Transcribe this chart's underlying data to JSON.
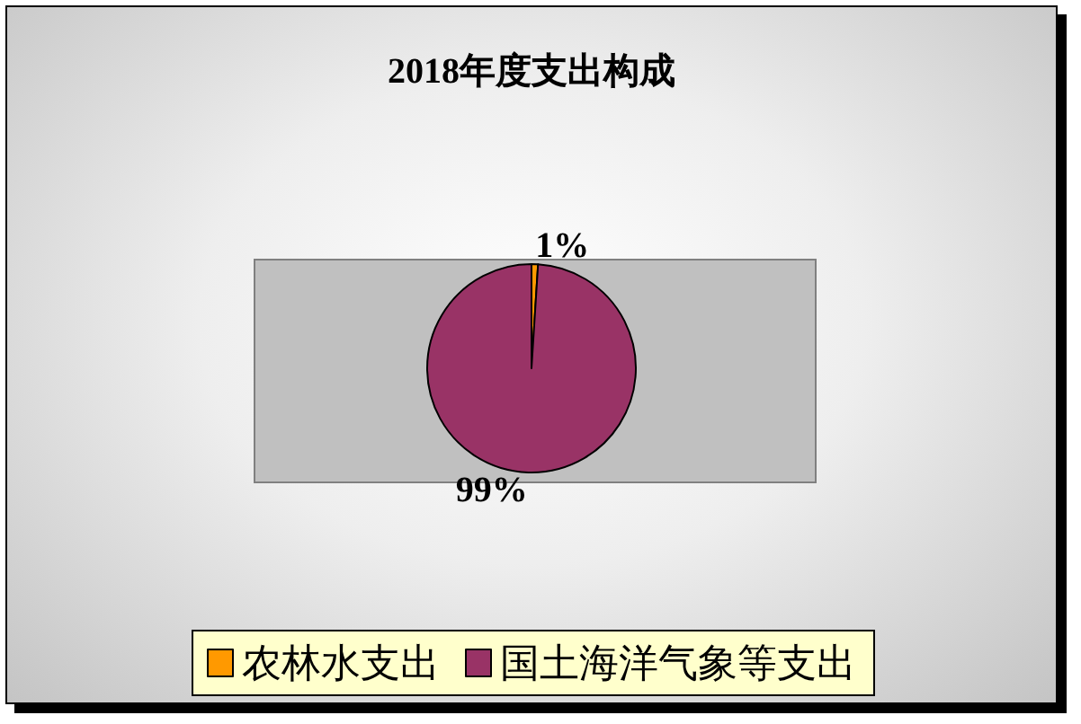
{
  "chart_data": {
    "type": "pie",
    "title": "2018年度支出构成",
    "categories": [
      "农林水支出",
      "国土海洋气象等支出"
    ],
    "values": [
      1,
      99
    ],
    "colors": [
      "#ff9900",
      "#993366"
    ],
    "value_labels": [
      "1%",
      "99%"
    ],
    "legend": "bottom"
  }
}
